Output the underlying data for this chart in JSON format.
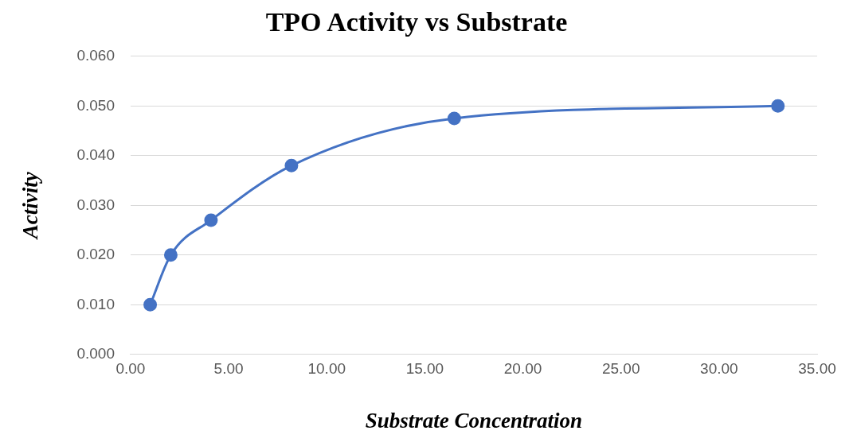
{
  "chart_data": {
    "type": "line",
    "title": "TPO Activity vs Substrate",
    "xlabel": "Substrate Concentration",
    "ylabel": "Activity",
    "x": [
      1.0,
      2.05,
      4.1,
      8.2,
      16.5,
      33.0
    ],
    "series": [
      {
        "color": "#4472c4",
        "values": [
          0.01,
          0.02,
          0.027,
          0.038,
          0.0475,
          0.05
        ]
      }
    ],
    "xlim": [
      0,
      35
    ],
    "xticks": [
      {
        "value": 0,
        "label": "0.00"
      },
      {
        "value": 5,
        "label": "5.00"
      },
      {
        "value": 10,
        "label": "10.00"
      },
      {
        "value": 15,
        "label": "15.00"
      },
      {
        "value": 20,
        "label": "20.00"
      },
      {
        "value": 25,
        "label": "25.00"
      },
      {
        "value": 30,
        "label": "30.00"
      },
      {
        "value": 35,
        "label": "35.00"
      }
    ],
    "ylim": [
      0,
      0.06
    ],
    "yticks": [
      {
        "value": 0,
        "label": "0.000"
      },
      {
        "value": 0.01,
        "label": "0.010"
      },
      {
        "value": 0.02,
        "label": "0.020"
      },
      {
        "value": 0.03,
        "label": "0.030"
      },
      {
        "value": 0.04,
        "label": "0.040"
      },
      {
        "value": 0.05,
        "label": "0.050"
      },
      {
        "value": 0.06,
        "label": "0.060"
      }
    ],
    "grid": "y",
    "marker": "circle",
    "line_style": "solid",
    "legend": false
  }
}
